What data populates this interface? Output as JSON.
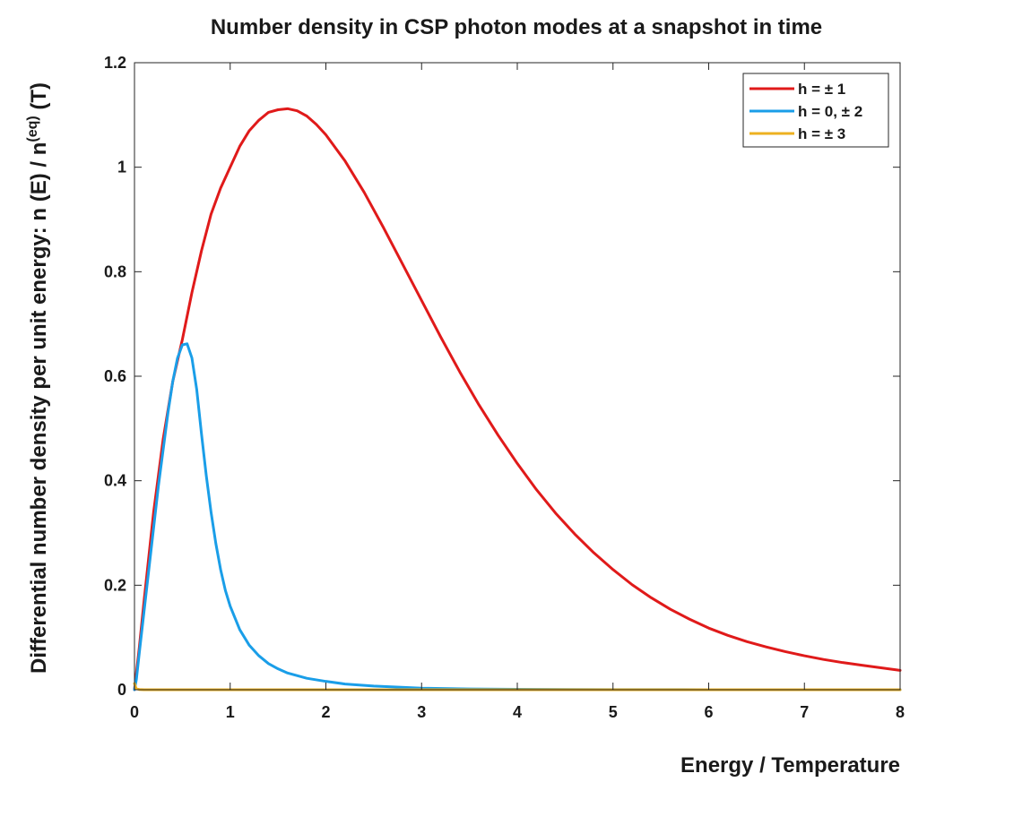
{
  "chart_data": {
    "type": "line",
    "title": "Number density in CSP photon modes at a snapshot in time",
    "xlabel": "Energy / Temperature",
    "ylabel": {
      "prefix": "Differential number density per unit energy: n (E) / n",
      "superscript": "(eq)",
      "suffix": " (T)"
    },
    "xlim": [
      0,
      8
    ],
    "ylim": [
      0,
      1.2
    ],
    "xticks": [
      0,
      1,
      2,
      3,
      4,
      5,
      6,
      7,
      8
    ],
    "xtick_labels": [
      "0",
      "1",
      "2",
      "3",
      "4",
      "5",
      "6",
      "7",
      "8"
    ],
    "yticks": [
      0,
      0.2,
      0.4,
      0.6,
      0.8,
      1.0,
      1.2
    ],
    "ytick_labels": [
      "0",
      "0.2",
      "0.4",
      "0.6",
      "0.8",
      "1",
      "1.2"
    ],
    "grid": false,
    "legend_position": "top-right",
    "series": [
      {
        "name": "h = ± 1",
        "color": "#e01a1a",
        "x": [
          0,
          0.05,
          0.1,
          0.2,
          0.3,
          0.4,
          0.5,
          0.6,
          0.7,
          0.8,
          0.9,
          1.0,
          1.1,
          1.2,
          1.3,
          1.4,
          1.5,
          1.6,
          1.7,
          1.8,
          1.9,
          2.0,
          2.2,
          2.4,
          2.6,
          2.8,
          3.0,
          3.2,
          3.4,
          3.6,
          3.8,
          4.0,
          4.2,
          4.4,
          4.6,
          4.8,
          5.0,
          5.2,
          5.4,
          5.6,
          5.8,
          6.0,
          6.2,
          6.4,
          6.6,
          6.8,
          7.0,
          7.2,
          7.4,
          7.6,
          7.8,
          8.0
        ],
        "y": [
          0.0,
          0.08,
          0.17,
          0.34,
          0.48,
          0.59,
          0.67,
          0.76,
          0.84,
          0.91,
          0.96,
          1.0,
          1.04,
          1.07,
          1.09,
          1.105,
          1.11,
          1.112,
          1.108,
          1.098,
          1.082,
          1.062,
          1.012,
          0.952,
          0.885,
          0.815,
          0.745,
          0.675,
          0.608,
          0.545,
          0.487,
          0.433,
          0.383,
          0.338,
          0.298,
          0.262,
          0.23,
          0.201,
          0.176,
          0.154,
          0.135,
          0.118,
          0.104,
          0.092,
          0.082,
          0.073,
          0.065,
          0.058,
          0.052,
          0.047,
          0.042,
          0.037
        ]
      },
      {
        "name": "h = 0, ± 2",
        "color": "#1a9ee8",
        "x": [
          0,
          0.02,
          0.05,
          0.1,
          0.15,
          0.2,
          0.25,
          0.3,
          0.35,
          0.4,
          0.45,
          0.5,
          0.55,
          0.6,
          0.65,
          0.7,
          0.75,
          0.8,
          0.85,
          0.9,
          0.95,
          1.0,
          1.1,
          1.2,
          1.3,
          1.4,
          1.5,
          1.6,
          1.8,
          2.0,
          2.2,
          2.5,
          3.0,
          3.5,
          4.0,
          5.0,
          6.0,
          7.0,
          8.0
        ],
        "y": [
          0.0,
          0.02,
          0.07,
          0.15,
          0.23,
          0.31,
          0.39,
          0.46,
          0.53,
          0.59,
          0.635,
          0.66,
          0.662,
          0.635,
          0.575,
          0.49,
          0.41,
          0.34,
          0.28,
          0.23,
          0.19,
          0.16,
          0.115,
          0.085,
          0.065,
          0.05,
          0.04,
          0.032,
          0.022,
          0.016,
          0.011,
          0.007,
          0.003,
          0.0015,
          0.0008,
          0.0003,
          0.0001,
          0.0,
          0.0
        ]
      },
      {
        "name": "h = ± 3",
        "color": "#edb120",
        "x": [
          0,
          0.01,
          0.02,
          0.05,
          0.1,
          1,
          2,
          3,
          4,
          5,
          6,
          7,
          8
        ],
        "y": [
          0.012,
          0.006,
          0.002,
          0.0005,
          0.0,
          0.0,
          0.0,
          0.0,
          0.0,
          0.0,
          0.0,
          0.0,
          0.0
        ]
      }
    ]
  }
}
